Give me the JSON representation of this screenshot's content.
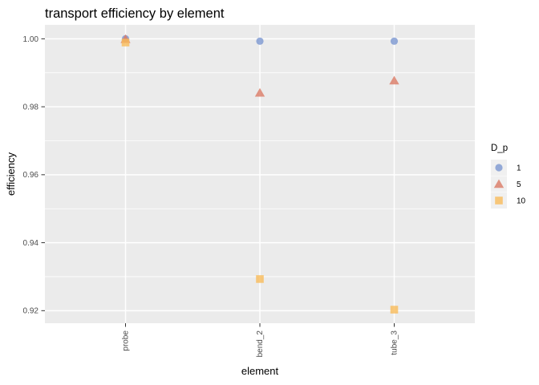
{
  "chart_data": {
    "type": "scatter",
    "title": "transport efficiency by element",
    "xlabel": "element",
    "ylabel": "efficiency",
    "categories": [
      "probe",
      "bend_2",
      "tube_3"
    ],
    "ylim": [
      0.9163,
      1.0041
    ],
    "y_ticks": [
      {
        "value": 0.92,
        "label": "0.92"
      },
      {
        "value": 0.94,
        "label": "0.94"
      },
      {
        "value": 0.96,
        "label": "0.96"
      },
      {
        "value": 0.98,
        "label": "0.98"
      },
      {
        "value": 1.0,
        "label": "1.00"
      }
    ],
    "y_minor_ticks": [
      0.93,
      0.95,
      0.97,
      0.99
    ],
    "grid": {
      "horizontal": "major+minor",
      "vertical": "major-only",
      "color": "#ffffff"
    },
    "legend": {
      "title": "D_p",
      "position": "right"
    },
    "series": [
      {
        "name": "1",
        "marker": "circle",
        "color": "#7c97d1",
        "values": [
          1.0,
          0.9993,
          0.9993
        ]
      },
      {
        "name": "5",
        "marker": "triangle",
        "color": "#db7a65",
        "values": [
          0.9999,
          0.9841,
          0.9877
        ]
      },
      {
        "name": "10",
        "marker": "square",
        "color": "#f9bc5a",
        "values": [
          0.9989,
          0.9293,
          0.9203
        ]
      }
    ],
    "style": {
      "panel_bg": "#ebebeb",
      "grid_color": "#ffffff",
      "tick_color": "#333333",
      "tick_label_color": "#4d4d4d",
      "text_color": "#000000",
      "legend_key_bg": "#f0f0f0",
      "marker_opacity": 0.8
    }
  }
}
